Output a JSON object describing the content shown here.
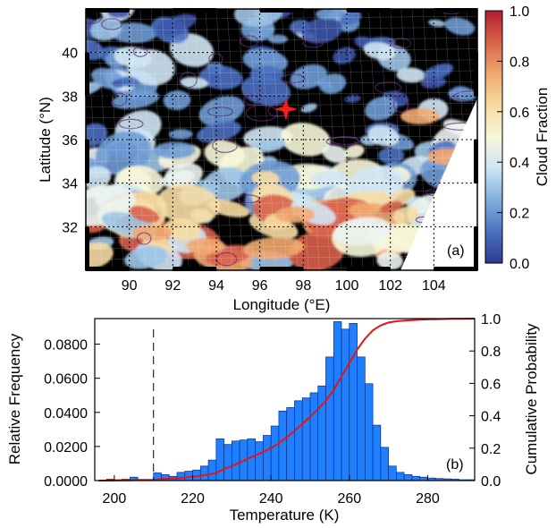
{
  "chart_data": [
    {
      "type": "heatmap",
      "panel_label": "(a)",
      "xlabel": "Longitude (°E)",
      "ylabel": "Latitude (°N)",
      "xlim": [
        88,
        106
      ],
      "ylim": [
        30,
        42
      ],
      "xticks": [
        "90",
        "92",
        "94",
        "96",
        "98",
        "100",
        "102",
        "104"
      ],
      "yticks": [
        "32",
        "34",
        "36",
        "38",
        "40"
      ],
      "colorbar": {
        "label": "Cloud Fraction",
        "range": [
          0.0,
          1.0
        ],
        "ticks": [
          "0.0",
          "0.2",
          "0.4",
          "0.6",
          "0.8",
          "1.0"
        ]
      },
      "marker": {
        "lon": 97.2,
        "lat": 37.4,
        "shape": "star",
        "color": "#ff1a1a"
      }
    },
    {
      "type": "bar",
      "panel_label": "(b)",
      "xlabel": "Temperature (K)",
      "ylabel": "Relative Frequency",
      "y2label": "Cumulative Probability",
      "xlim": [
        195,
        292
      ],
      "ylim": [
        0,
        0.095
      ],
      "y2lim": [
        0,
        1.0
      ],
      "xticks": [
        "200",
        "220",
        "240",
        "260",
        "280"
      ],
      "yticks": [
        "0.0000",
        "0.0200",
        "0.0400",
        "0.0600",
        "0.0800"
      ],
      "y2ticks": [
        "0.0",
        "0.2",
        "0.4",
        "0.6",
        "0.8",
        "1.0"
      ],
      "dashed_line_x": 210,
      "bin_width": 2,
      "bin_start": 196,
      "values": [
        0.0,
        0.0008,
        0.0005,
        0.0008,
        0.002,
        0.0005,
        0.0005,
        0.0045,
        0.0035,
        0.0025,
        0.0048,
        0.0055,
        0.0062,
        0.0085,
        0.012,
        0.0245,
        0.0212,
        0.0232,
        0.0238,
        0.0245,
        0.0228,
        0.0265,
        0.032,
        0.0408,
        0.0428,
        0.0468,
        0.0485,
        0.0515,
        0.0555,
        0.0725,
        0.0932,
        0.0888,
        0.0922,
        0.0725,
        0.0568,
        0.0325,
        0.0195,
        0.0085,
        0.0048,
        0.0035,
        0.0025,
        0.002,
        0.0015,
        0.0012,
        0.001,
        0.0008,
        0.0005,
        0.0005
      ],
      "colors": {
        "bar": "#1f7fff",
        "cdf": "#e8140f"
      }
    }
  ]
}
